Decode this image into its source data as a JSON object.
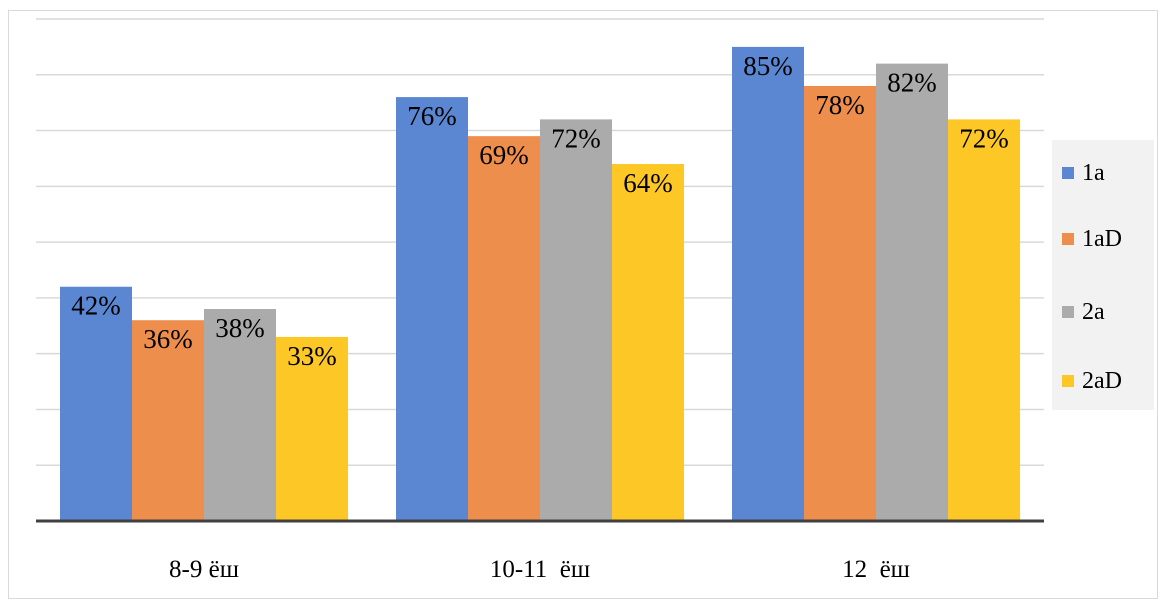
{
  "chart_data": {
    "type": "bar",
    "categories": [
      "8-9 ёш",
      "10-11  ёш",
      "12  ёш"
    ],
    "series": [
      {
        "name": "1a",
        "values": [
          42,
          76,
          85
        ],
        "color": "#5b86d1",
        "labels": [
          "42%",
          "76%",
          "85%"
        ]
      },
      {
        "name": "1aD",
        "values": [
          36,
          69,
          78
        ],
        "color": "#ee8e4c",
        "labels": [
          "36%",
          "69%",
          "78%"
        ]
      },
      {
        "name": "2a",
        "values": [
          38,
          72,
          82
        ],
        "color": "#ababab",
        "labels": [
          "38%",
          "72%",
          "82%"
        ]
      },
      {
        "name": "2aD",
        "values": [
          33,
          64,
          72
        ],
        "color": "#fdc826",
        "labels": [
          "33%",
          "64%",
          "72%"
        ]
      }
    ],
    "ylim": [
      0,
      90
    ],
    "grid": true,
    "legend": "right"
  }
}
